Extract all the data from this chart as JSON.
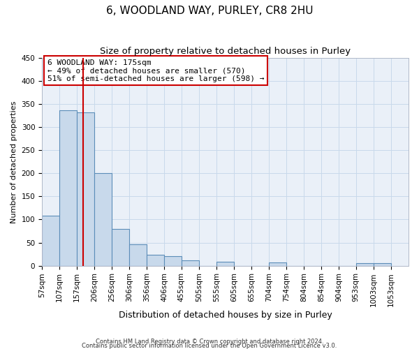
{
  "title": "6, WOODLAND WAY, PURLEY, CR8 2HU",
  "subtitle": "Size of property relative to detached houses in Purley",
  "xlabel": "Distribution of detached houses by size in Purley",
  "ylabel": "Number of detached properties",
  "bar_left_edges": [
    57,
    107,
    157,
    206,
    256,
    306,
    356,
    406,
    455,
    505,
    555,
    605,
    655,
    704,
    754,
    804,
    854,
    904,
    953,
    1003
  ],
  "bar_heights": [
    109,
    336,
    332,
    200,
    80,
    46,
    24,
    21,
    11,
    0,
    9,
    0,
    0,
    7,
    0,
    0,
    0,
    0,
    6,
    6
  ],
  "bar_face_color": "#c8d9eb",
  "bar_edge_color": "#5b8db8",
  "vline_x": 175,
  "vline_color": "#cc0000",
  "ylim": [
    0,
    450
  ],
  "yticks": [
    0,
    50,
    100,
    150,
    200,
    250,
    300,
    350,
    400,
    450
  ],
  "xtick_labels": [
    "57sqm",
    "107sqm",
    "157sqm",
    "206sqm",
    "256sqm",
    "306sqm",
    "356sqm",
    "406sqm",
    "455sqm",
    "505sqm",
    "555sqm",
    "605sqm",
    "655sqm",
    "704sqm",
    "754sqm",
    "804sqm",
    "854sqm",
    "904sqm",
    "953sqm",
    "1003sqm",
    "1053sqm"
  ],
  "annotation_title": "6 WOODLAND WAY: 175sqm",
  "annotation_line1": "← 49% of detached houses are smaller (570)",
  "annotation_line2": "51% of semi-detached houses are larger (598) →",
  "annotation_box_color": "#cc0000",
  "grid_color": "#c8d9eb",
  "background_color": "#eaf0f8",
  "footnote1": "Contains HM Land Registry data © Crown copyright and database right 2024.",
  "footnote2": "Contains public sector information licensed under the Open Government Licence v3.0.",
  "title_fontsize": 11,
  "subtitle_fontsize": 9.5,
  "xlabel_fontsize": 9,
  "ylabel_fontsize": 8,
  "annotation_fontsize": 8,
  "tick_fontsize": 7.5
}
